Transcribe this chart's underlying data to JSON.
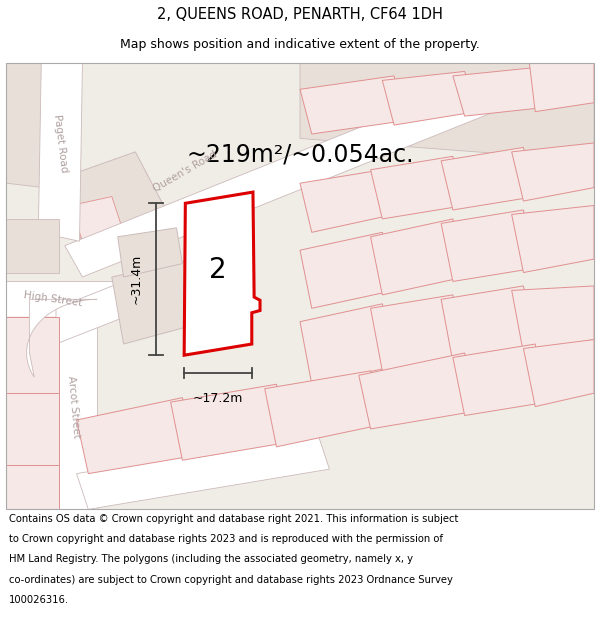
{
  "title": "2, QUEENS ROAD, PENARTH, CF64 1DH",
  "subtitle": "Map shows position and indicative extent of the property.",
  "area_text": "~219m²/~0.054ac.",
  "dim_width": "~17.2m",
  "dim_height": "~31.4m",
  "property_number": "2",
  "footer_lines": [
    "Contains OS data © Crown copyright and database right 2021. This information is subject",
    "to Crown copyright and database rights 2023 and is reproduced with the permission of",
    "HM Land Registry. The polygons (including the associated geometry, namely x, y",
    "co-ordinates) are subject to Crown copyright and database rights 2023 Ordnance Survey",
    "100026316."
  ],
  "map_bg": "#f0ece6",
  "parcel_fill": "#f5e8e6",
  "parcel_edge": "#e09090",
  "road_fill": "#ffffff",
  "road_edge": "#ccbbbb",
  "block_fill": "#e8e0d8",
  "block_edge": "#ccbbbb",
  "property_fill": "#ffffff",
  "property_edge": "#dd0000",
  "dim_color": "#444444",
  "label_color": "#b0a0a0",
  "title_fs": 10.5,
  "subtitle_fs": 9,
  "area_fs": 17,
  "number_fs": 20,
  "dim_fs": 9,
  "street_fs": 7.5,
  "footer_fs": 7.2
}
